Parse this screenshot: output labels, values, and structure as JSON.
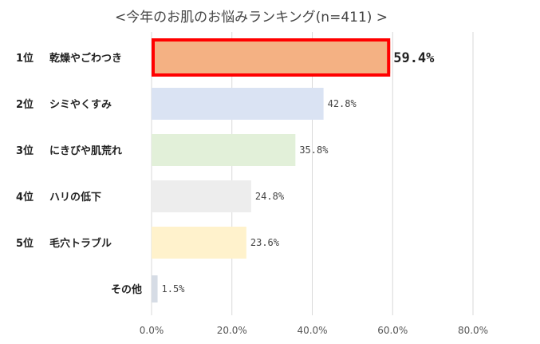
{
  "chart_data": {
    "type": "bar",
    "orientation": "horizontal",
    "title": "<今年のお肌のお悩みランキング(n=411) >",
    "categories": [
      {
        "rank": "1位",
        "name": "乾燥やごわつき"
      },
      {
        "rank": "2位",
        "name": "シミやくすみ"
      },
      {
        "rank": "3位",
        "name": "にきびや肌荒れ"
      },
      {
        "rank": "4位",
        "name": "ハリの低下"
      },
      {
        "rank": "5位",
        "name": "毛穴トラブル"
      },
      {
        "rank": "",
        "name": "その他"
      }
    ],
    "values": [
      59.4,
      42.8,
      35.8,
      24.8,
      23.6,
      1.5
    ],
    "value_labels": [
      "59.4%",
      "42.8%",
      "35.8%",
      "24.8%",
      "23.6%",
      "1.5%"
    ],
    "bar_colors": [
      "#f4b183",
      "#dae3f3",
      "#e2f0d9",
      "#ededed",
      "#fff2cc",
      "#d6dce5"
    ],
    "highlight_index": 0,
    "highlight_color": "#ff0000",
    "xlim": [
      0,
      80
    ],
    "xticks": [
      "0.0%",
      "20.0%",
      "40.0%",
      "60.0%",
      "80.0%"
    ],
    "grid": true
  }
}
